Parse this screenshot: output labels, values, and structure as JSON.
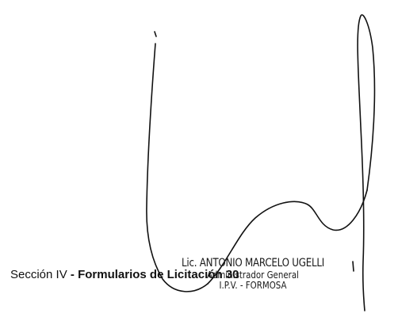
{
  "stamp": {
    "name": "Lic. ANTONIO MARCELO UGELLI",
    "role": "Administrador General",
    "place": "I.P.V. - FORMOSA"
  },
  "footer": {
    "section": "Sección IV",
    "separator": " - ",
    "title": "Formularios de Licitación",
    "page_number": "30"
  },
  "signature_icon": "handwritten-signature-icon"
}
